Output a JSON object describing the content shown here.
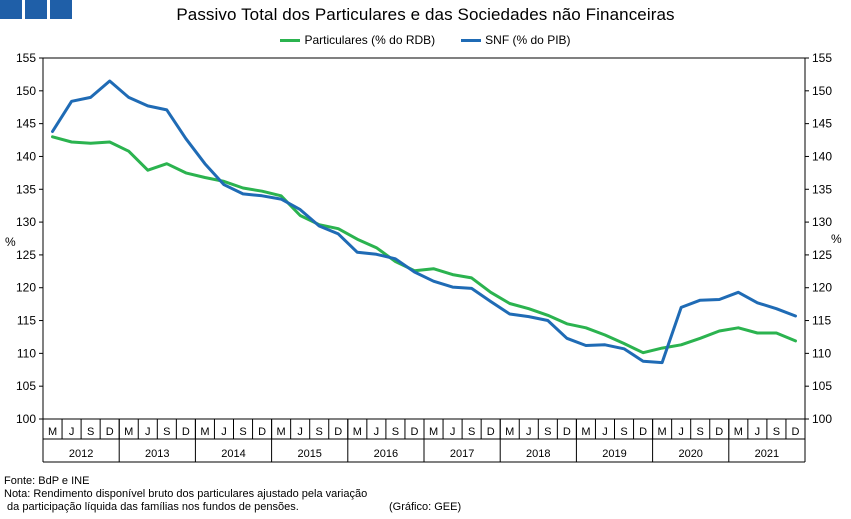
{
  "chart_data": {
    "type": "line",
    "title": "Passivo Total dos Particulares e das Sociedades não Financeiras",
    "ylabel_left": "%",
    "ylabel_right": "%",
    "ylim": [
      100,
      155
    ],
    "yticks": [
      100,
      105,
      110,
      115,
      120,
      125,
      130,
      135,
      140,
      145,
      150,
      155
    ],
    "x_quarter_labels": [
      "M",
      "J",
      "S",
      "D",
      "M",
      "J",
      "S",
      "D",
      "M",
      "J",
      "S",
      "D",
      "M",
      "J",
      "S",
      "D",
      "M",
      "J",
      "S",
      "D",
      "M",
      "J",
      "S",
      "D",
      "M",
      "J",
      "S",
      "D",
      "M",
      "J",
      "S",
      "D",
      "M",
      "J",
      "S",
      "D",
      "M",
      "J",
      "S",
      "D"
    ],
    "years": [
      "2012",
      "2013",
      "2014",
      "2015",
      "2016",
      "2017",
      "2018",
      "2019",
      "2020",
      "2021"
    ],
    "legend_position": "top-center",
    "grid": false,
    "series": [
      {
        "name": "Particulares (% do RDB)",
        "color": "#2bb34f",
        "values": [
          143.0,
          142.2,
          142.0,
          142.2,
          140.8,
          137.9,
          138.9,
          137.5,
          136.8,
          136.2,
          135.2,
          134.7,
          134.0,
          131.0,
          129.6,
          129.0,
          127.4,
          126.1,
          124.0,
          122.6,
          122.9,
          122.0,
          121.5,
          119.3,
          117.6,
          116.8,
          115.8,
          114.5,
          113.9,
          112.8,
          111.5,
          110.1,
          110.8,
          111.3,
          112.3,
          113.4,
          113.9,
          113.1,
          113.1,
          111.9
        ]
      },
      {
        "name": "SNF (% do PIB)",
        "color": "#1f6bb5",
        "values": [
          143.8,
          148.4,
          149.0,
          151.5,
          149.0,
          147.7,
          147.1,
          142.7,
          138.9,
          135.7,
          134.3,
          134.0,
          133.5,
          131.9,
          129.4,
          128.2,
          125.4,
          125.1,
          124.4,
          122.4,
          121.0,
          120.1,
          119.9,
          117.9,
          116.0,
          115.6,
          115.0,
          112.3,
          111.2,
          111.3,
          110.7,
          108.8,
          108.6,
          117.0,
          118.1,
          118.2,
          119.3,
          117.7,
          116.8,
          115.7
        ]
      }
    ]
  },
  "footer": {
    "source": "Fonte: BdP e INE",
    "note_line1": "Nota: Rendimento disponível bruto dos particulares ajustado pela variação",
    "note_line2": " da participação líquida das famílias nos fundos de pensões.",
    "credit": "(Gráfico: GEE)"
  }
}
